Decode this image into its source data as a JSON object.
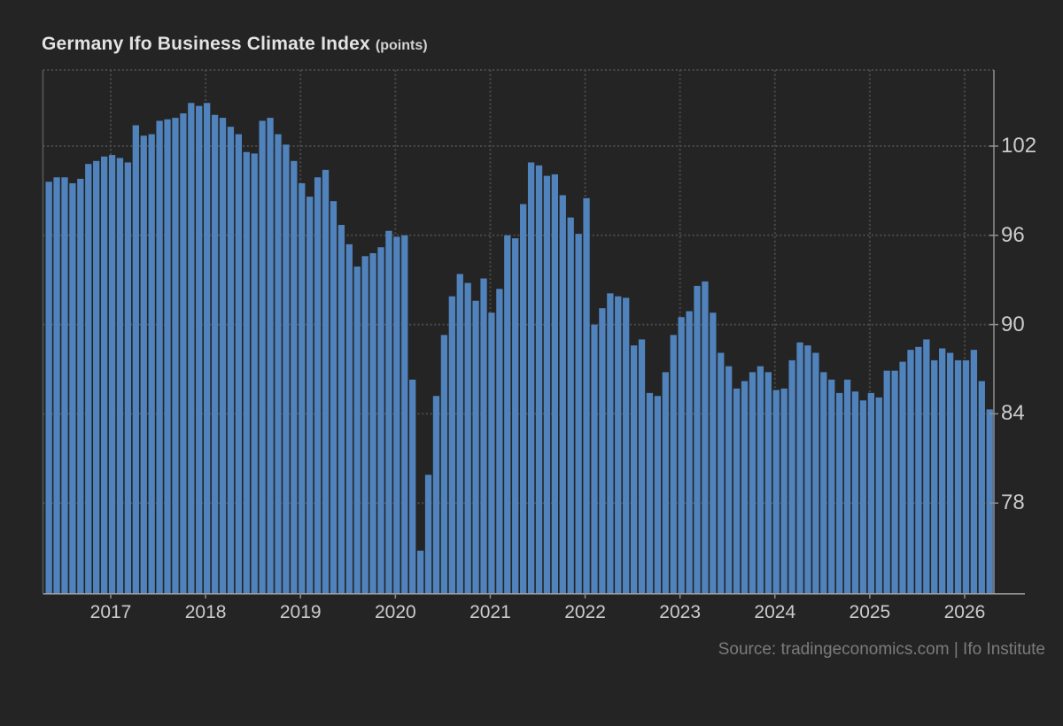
{
  "header": {
    "title": "Germany Ifo Business Climate Index",
    "units": "(points)"
  },
  "source": {
    "text": "Source: tradingeconomics.com | Ifo Institute"
  },
  "colors": {
    "background": "#242424",
    "bar": "#5082bc",
    "grid": "#4a4a4a",
    "axis_left": "#57595c",
    "axis_right": "#8e8e8e",
    "axis_bottom": "#a2a2a2",
    "tick_text": "#cbcbcb",
    "title_text": "#e3e3e3",
    "source_text": "#7b7b7b"
  },
  "chart_data": {
    "type": "bar",
    "title": "Germany Ifo Business Climate Index",
    "ylabel": "points",
    "xlabel": "",
    "legend": "none",
    "grid": "dotted",
    "frequency": "monthly",
    "start_month": "2016-05",
    "end_month": "2026-04",
    "y_tick_labels": [
      102,
      96,
      90,
      84,
      78
    ],
    "x_tick_labels": [
      "2017",
      "2018",
      "2019",
      "2020",
      "2021",
      "2022",
      "2023",
      "2024",
      "2025",
      "2026"
    ],
    "ylim_drawn": [
      71.9,
      107.1
    ],
    "values_by_year": [
      {
        "year": 2016,
        "first_month": "May",
        "values": [
          99.6,
          99.9,
          99.9,
          99.5,
          99.8,
          100.8,
          101.0,
          101.3
        ]
      },
      {
        "year": 2017,
        "values": [
          101.4,
          101.2,
          100.9,
          103.4,
          102.7,
          102.8,
          103.7,
          103.8,
          103.9,
          104.2,
          104.9,
          104.7
        ]
      },
      {
        "year": 2018,
        "values": [
          104.9,
          104.1,
          103.9,
          103.3,
          102.8,
          101.6,
          101.5,
          103.7,
          103.9,
          102.8,
          102.1,
          101.0
        ]
      },
      {
        "year": 2019,
        "values": [
          99.5,
          98.6,
          99.9,
          100.4,
          98.3,
          96.7,
          95.4,
          93.9,
          94.6,
          94.8,
          95.2,
          96.3
        ]
      },
      {
        "year": 2020,
        "values": [
          95.9,
          96.0,
          86.3,
          74.8,
          79.9,
          85.2,
          89.3,
          91.9,
          93.4,
          92.8,
          91.6,
          93.1
        ]
      },
      {
        "year": 2021,
        "values": [
          90.8,
          92.4,
          96.0,
          95.8,
          98.1,
          100.9,
          100.7,
          100.0,
          100.1,
          98.7,
          97.2,
          96.1
        ]
      },
      {
        "year": 2022,
        "values": [
          98.5,
          90.0,
          91.1,
          92.1,
          91.9,
          91.8,
          88.6,
          89.0,
          85.4,
          85.2,
          86.8,
          89.3
        ]
      },
      {
        "year": 2023,
        "values": [
          90.5,
          90.9,
          92.6,
          92.9,
          90.8,
          88.1,
          87.2,
          85.7,
          86.2,
          86.8,
          87.2,
          86.8
        ]
      },
      {
        "year": 2024,
        "values": [
          85.6,
          85.7,
          87.6,
          88.8,
          88.6,
          88.1,
          86.8,
          86.3,
          85.4,
          86.3,
          85.5,
          84.9
        ]
      },
      {
        "year": 2025,
        "values": [
          85.4,
          85.1,
          86.9,
          86.9,
          87.5,
          88.3,
          88.5,
          89.0,
          87.6,
          88.4,
          88.1,
          87.6
        ]
      },
      {
        "year": 2026,
        "values": [
          87.6,
          88.3,
          86.2,
          84.3
        ]
      }
    ]
  }
}
